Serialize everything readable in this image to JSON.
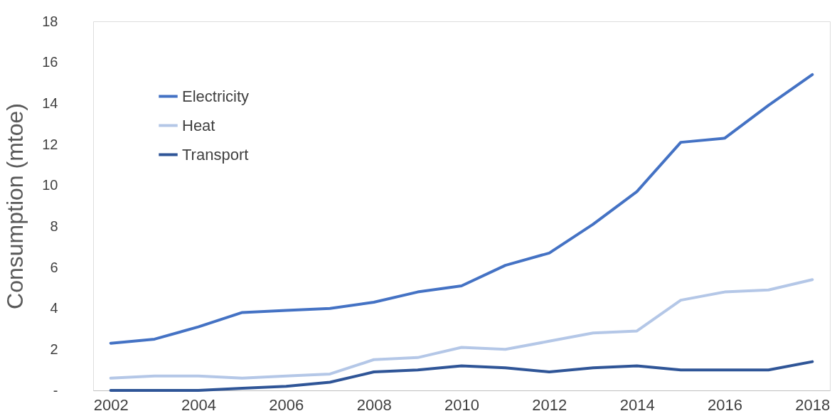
{
  "chart_data": {
    "type": "line",
    "ylabel": "Consumption (mtoe)",
    "x": [
      2002,
      2003,
      2004,
      2005,
      2006,
      2007,
      2008,
      2009,
      2010,
      2011,
      2012,
      2013,
      2014,
      2015,
      2016,
      2017,
      2018
    ],
    "series": [
      {
        "name": "Electricity",
        "color": "#4472c4",
        "values": [
          2.3,
          2.5,
          3.1,
          3.8,
          3.9,
          4.0,
          4.3,
          4.8,
          5.1,
          6.1,
          6.7,
          8.1,
          9.7,
          12.1,
          12.3,
          13.9,
          15.4
        ]
      },
      {
        "name": "Heat",
        "color": "#b4c7e7",
        "values": [
          0.6,
          0.7,
          0.7,
          0.6,
          0.7,
          0.8,
          1.5,
          1.6,
          2.1,
          2.0,
          2.4,
          2.8,
          2.9,
          4.4,
          4.8,
          4.9,
          5.4
        ]
      },
      {
        "name": "Transport",
        "color": "#2f5597",
        "values": [
          0.0,
          0.0,
          0.0,
          0.1,
          0.2,
          0.4,
          0.9,
          1.0,
          1.2,
          1.1,
          0.9,
          1.1,
          1.2,
          1.0,
          1.0,
          1.0,
          1.4
        ]
      }
    ],
    "xlim": [
      2001.6,
      2018.4
    ],
    "xticks": [
      2002,
      2004,
      2006,
      2008,
      2010,
      2012,
      2014,
      2016,
      2018
    ],
    "ylim": [
      0,
      18
    ],
    "yticks": [
      {
        "value": 0,
        "label": "-"
      },
      2,
      4,
      6,
      8,
      10,
      12,
      14,
      16,
      18
    ],
    "grid": false,
    "legend": "top left",
    "marker": "none",
    "line_style": "solid"
  }
}
